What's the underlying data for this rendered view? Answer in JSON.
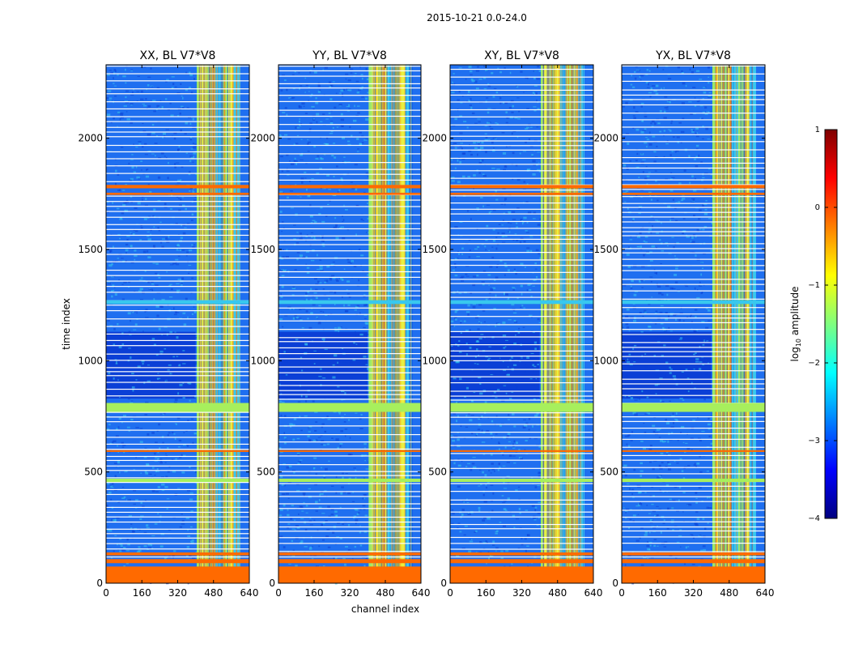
{
  "figure": {
    "suptitle": "2015-10-21 0.0-24.0",
    "ylabel": "time index",
    "xlabel": "channel index"
  },
  "chart_data": [
    {
      "type": "heatmap",
      "title": "XX, BL V7*V8",
      "xlim": [
        0,
        640
      ],
      "ylim": [
        0,
        2330
      ],
      "xticks": [
        0,
        160,
        320,
        480,
        640
      ],
      "yticks": [
        0,
        500,
        1000,
        1500,
        2000
      ],
      "xlabel": "",
      "ylabel": "time index",
      "band": [
        [
          405,
          420
        ],
        [
          420,
          448
        ],
        [
          448,
          470
        ],
        [
          470,
          490
        ],
        [
          490,
          520
        ],
        [
          520,
          545
        ],
        [
          545,
          570
        ],
        [
          570,
          600
        ]
      ]
    },
    {
      "type": "heatmap",
      "title": "YY, BL V7*V8",
      "xlim": [
        0,
        640
      ],
      "ylim": [
        0,
        2330
      ],
      "xticks": [
        0,
        160,
        320,
        480,
        640
      ],
      "yticks": [
        0,
        500,
        1000,
        1500,
        2000
      ],
      "xlabel": "channel index",
      "ylabel": "",
      "band": [
        [
          405,
          420
        ],
        [
          420,
          448
        ],
        [
          448,
          470
        ],
        [
          470,
          490
        ],
        [
          490,
          520
        ],
        [
          520,
          545
        ],
        [
          545,
          570
        ],
        [
          570,
          600
        ]
      ]
    },
    {
      "type": "heatmap",
      "title": "XY, BL V7*V8",
      "xlim": [
        0,
        640
      ],
      "ylim": [
        0,
        2330
      ],
      "xticks": [
        0,
        160,
        320,
        480,
        640
      ],
      "yticks": [
        0,
        500,
        1000,
        1500,
        2000
      ],
      "xlabel": "",
      "ylabel": "",
      "band": [
        [
          405,
          420
        ],
        [
          420,
          448
        ],
        [
          448,
          470
        ],
        [
          470,
          490
        ],
        [
          490,
          520
        ],
        [
          520,
          545
        ],
        [
          545,
          570
        ],
        [
          570,
          600
        ]
      ]
    },
    {
      "type": "heatmap",
      "title": "YX, BL V7*V8",
      "xlim": [
        0,
        640
      ],
      "ylim": [
        0,
        2330
      ],
      "xticks": [
        0,
        160,
        320,
        480,
        640
      ],
      "yticks": [
        0,
        500,
        1000,
        1500,
        2000
      ],
      "xlabel": "",
      "ylabel": "",
      "band": [
        [
          405,
          420
        ],
        [
          420,
          448
        ],
        [
          448,
          470
        ],
        [
          470,
          490
        ],
        [
          490,
          520
        ],
        [
          520,
          545
        ],
        [
          545,
          570
        ],
        [
          570,
          600
        ]
      ]
    }
  ],
  "colorbar": {
    "label": "log10 amplitude",
    "label_main": "log",
    "label_sub": "10",
    "label_tail": " amplitude",
    "range": [
      -4,
      1
    ],
    "ticks": [
      1,
      0,
      -1,
      -2,
      -3,
      -4
    ],
    "tick_labels": [
      "1",
      "0",
      "−1",
      "−2",
      "−3",
      "−4"
    ],
    "colors": [
      "#00007f",
      "#0000ff",
      "#007fff",
      "#00ffff",
      "#7fff7f",
      "#ffff00",
      "#ff7f00",
      "#ff0000",
      "#7f0000"
    ]
  },
  "colors": {
    "background": "#ffffff",
    "deep_blue": "#0b3fd6",
    "mid_blue": "#1f6ff0",
    "cyan": "#38c8ee",
    "band_green": "#9be86a",
    "band_yellow": "#e8f040",
    "flag_orange": "#ff6a00",
    "flag_green": "#a7ef5d",
    "gap_white": "#ffffff"
  }
}
